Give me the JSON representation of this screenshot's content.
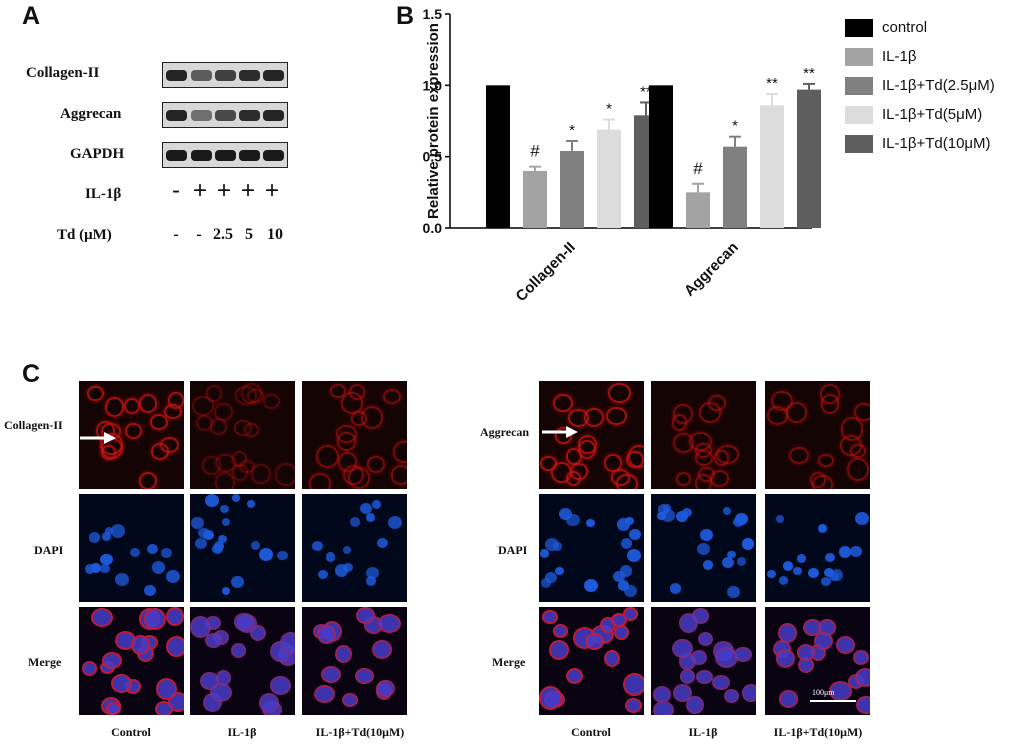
{
  "panelA": {
    "letter": "A",
    "rows": [
      "Collagen-II",
      "Aggrecan",
      "GAPDH"
    ],
    "il1b_label": "IL-1β",
    "il1b_signs": [
      "-",
      "+",
      "+",
      "+",
      "+"
    ],
    "td_label": "Td (μM)",
    "td_values": [
      "-",
      "-",
      "2.5",
      "5",
      "10"
    ]
  },
  "panelB": {
    "letter": "B",
    "legend": [
      {
        "label": "control",
        "color": "#000000"
      },
      {
        "label": "IL-1β",
        "color": "#a3a3a3"
      },
      {
        "label": "IL-1β+Td(2.5μM)",
        "color": "#808080"
      },
      {
        "label": "IL-1β+Td(5μM)",
        "color": "#dcdcdc"
      },
      {
        "label": "IL-1β+Td(10μM)",
        "color": "#5e5e5e"
      }
    ]
  },
  "chart_data": {
    "type": "bar",
    "categories": [
      "Collagen-II",
      "Aggrecan"
    ],
    "ylabel": "Relative protein expression",
    "ylim": [
      0,
      1.5
    ],
    "yticks": [
      "0.0",
      "0.5",
      "1.0",
      "1.5"
    ],
    "series": [
      {
        "name": "control",
        "values": [
          1.0,
          1.0
        ],
        "errors": [
          0,
          0
        ],
        "marks": [
          "",
          ""
        ]
      },
      {
        "name": "IL-1β",
        "values": [
          0.4,
          0.25
        ],
        "errors": [
          0.03,
          0.06
        ],
        "marks": [
          "#",
          "#"
        ]
      },
      {
        "name": "IL-1β+Td(2.5μM)",
        "values": [
          0.54,
          0.57
        ],
        "errors": [
          0.07,
          0.07
        ],
        "marks": [
          "*",
          "*"
        ]
      },
      {
        "name": "IL-1β+Td(5μM)",
        "values": [
          0.69,
          0.86
        ],
        "errors": [
          0.07,
          0.08
        ],
        "marks": [
          "*",
          "**"
        ]
      },
      {
        "name": "IL-1β+Td(10μM)",
        "values": [
          0.79,
          0.97
        ],
        "errors": [
          0.09,
          0.04
        ],
        "marks": [
          "**",
          "**"
        ]
      }
    ]
  },
  "panelC": {
    "letter": "C",
    "left_rows": [
      "Collagen-II",
      "DAPI",
      "Merge"
    ],
    "right_rows": [
      "Aggrecan",
      "DAPI",
      "Merge"
    ],
    "columns": [
      "Control",
      "IL-1β",
      "IL-1β+Td(10μM)"
    ],
    "scale_bar": "100μm"
  }
}
